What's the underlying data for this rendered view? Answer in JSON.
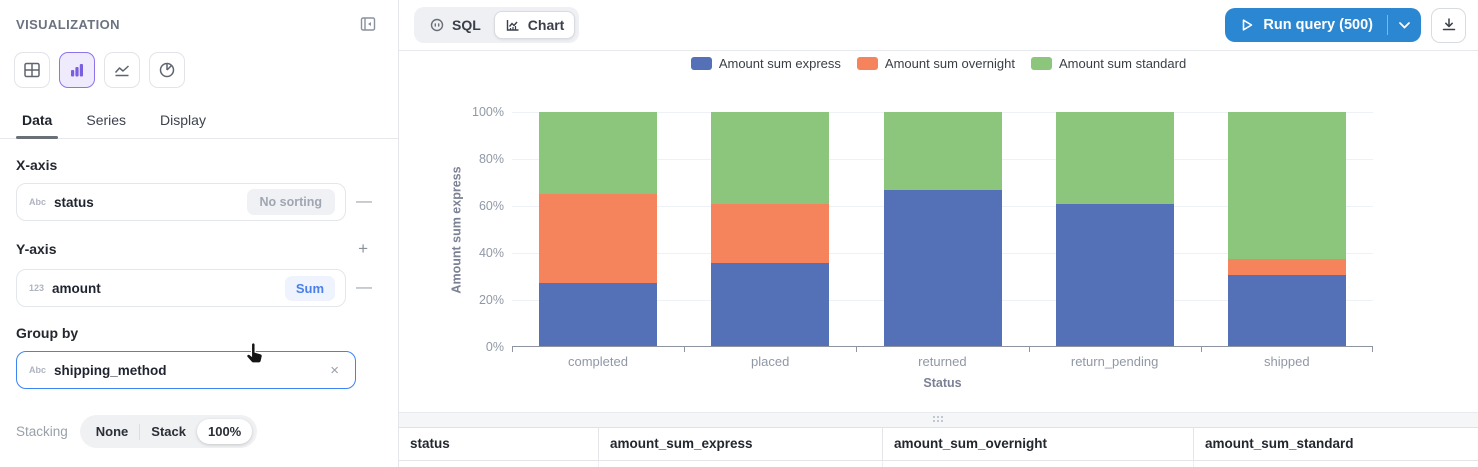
{
  "sidebar": {
    "title": "VISUALIZATION",
    "chart_types": [
      {
        "name": "table",
        "selected": false
      },
      {
        "name": "bar",
        "selected": true
      },
      {
        "name": "line",
        "selected": false
      },
      {
        "name": "pie",
        "selected": false
      }
    ],
    "tabs": [
      {
        "label": "Data",
        "active": true
      },
      {
        "label": "Series",
        "active": false
      },
      {
        "label": "Display",
        "active": false
      }
    ],
    "x_axis": {
      "heading": "X-axis",
      "field": {
        "type_icon": "Abc",
        "name": "status",
        "action": "No sorting"
      },
      "remove_label": "—"
    },
    "y_axis": {
      "heading": "Y-axis",
      "add_label": "+",
      "field": {
        "type_icon": "123",
        "name": "amount",
        "action": "Sum"
      },
      "remove_label": "—"
    },
    "group_by": {
      "heading": "Group by",
      "field": {
        "type_icon": "Abc",
        "name": "shipping_method"
      },
      "clear_label": "×"
    },
    "stacking": {
      "label": "Stacking",
      "options": [
        "None",
        "Stack",
        "100%"
      ],
      "selected": "100%"
    }
  },
  "toolbar": {
    "view_toggle": [
      {
        "label": "SQL",
        "icon": "sql-icon",
        "active": false
      },
      {
        "label": "Chart",
        "icon": "chart-icon",
        "active": true
      }
    ],
    "run_button": {
      "label": "Run query (500)"
    }
  },
  "chart_data": {
    "type": "bar",
    "stacking": "percent",
    "title": "",
    "xlabel": "Status",
    "ylabel": "Amount sum express",
    "categories": [
      "completed",
      "placed",
      "returned",
      "return_pending",
      "shipped"
    ],
    "series": [
      {
        "name": "Amount sum express",
        "color": "#5471b8",
        "values": [
          27,
          35.5,
          66.5,
          60.5,
          30.5
        ]
      },
      {
        "name": "Amount sum overnight",
        "color": "#f5835c",
        "values": [
          38,
          25,
          0,
          0,
          6.5
        ]
      },
      {
        "name": "Amount sum standard",
        "color": "#8cc57c",
        "values": [
          35,
          39.5,
          33.5,
          39.5,
          63
        ]
      }
    ],
    "ylim": [
      0,
      100
    ],
    "y_ticks": [
      "0%",
      "20%",
      "40%",
      "60%",
      "80%",
      "100%"
    ],
    "grid": true,
    "legend_position": "top"
  },
  "table": {
    "columns": [
      "status",
      "amount_sum_express",
      "amount_sum_overnight",
      "amount_sum_standard"
    ]
  },
  "colors": {
    "accent_blue": "#2b87d2",
    "selected_purple": "#8d74ec",
    "focus_border": "#3d85f2"
  }
}
